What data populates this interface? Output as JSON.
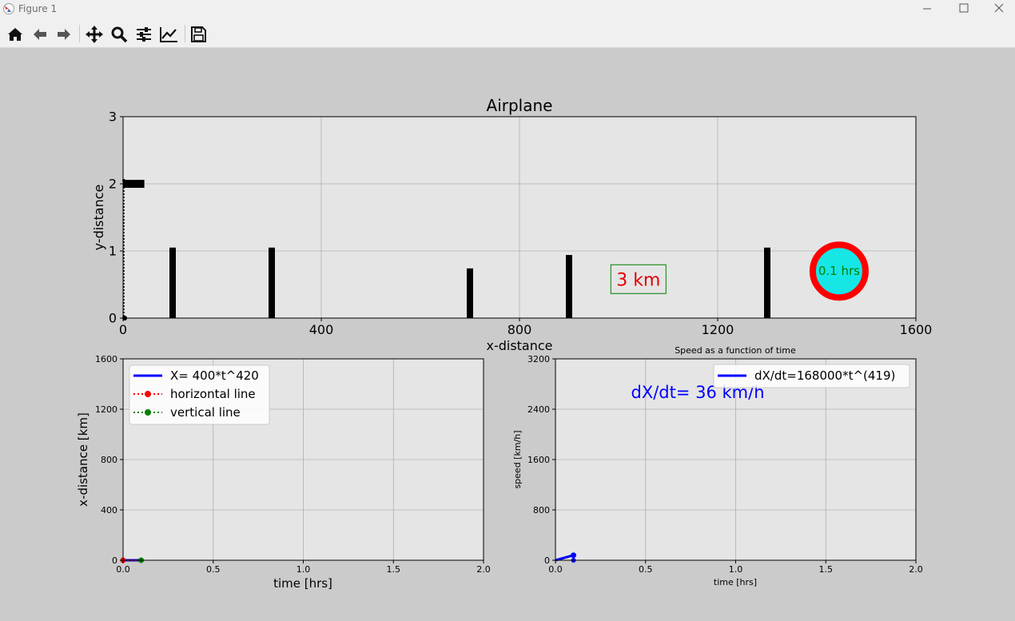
{
  "window": {
    "title": "Figure 1"
  },
  "toolbar": {
    "buttons": [
      "home-icon",
      "back-arrow-icon",
      "forward-arrow-icon",
      "pan-move-icon",
      "zoom-magnifier-icon",
      "configure-subplots-icon",
      "edit-axis-icon",
      "save-disk-icon"
    ]
  },
  "colors": {
    "axes_bg": "#e5e5e5",
    "figure_bg": "#cbcbcb",
    "blue": "#0000ff",
    "red": "#ff0000",
    "green": "#008000",
    "cyan": "#17e6e6"
  },
  "chart_data": [
    {
      "type": "scatter",
      "title": "Airplane",
      "xlabel": "x-distance",
      "ylabel": "y-distance",
      "xlim": [
        0,
        1600
      ],
      "ylim": [
        0,
        3
      ],
      "xticks": [
        "0",
        "400",
        "800",
        "1200",
        "1600"
      ],
      "yticks": [
        "0",
        "1",
        "2",
        "3"
      ],
      "grid": true,
      "airplane": {
        "x": [
          0,
          30
        ],
        "y": 2
      },
      "vertical_marker_x": 0,
      "obstacles": [
        {
          "x": 100,
          "height": 1.05
        },
        {
          "x": 300,
          "height": 1.05
        },
        {
          "x": 700,
          "height": 0.74
        },
        {
          "x": 900,
          "height": 0.94
        },
        {
          "x": 1300,
          "height": 1.05
        }
      ],
      "distance_box": {
        "text": "3 km",
        "x": 1040,
        "y": 0.58
      },
      "time_circle": {
        "text": "0.1 hrs",
        "x": 1445,
        "y": 0.7
      }
    },
    {
      "type": "line",
      "xlabel": "time [hrs]",
      "ylabel": "x-distance [km]",
      "xlim": [
        0,
        2.0
      ],
      "ylim": [
        0,
        1600
      ],
      "xticks": [
        "0.0",
        "0.5",
        "1.0",
        "1.5",
        "2.0"
      ],
      "yticks": [
        "0",
        "400",
        "800",
        "1200",
        "1600"
      ],
      "grid": true,
      "legend": {
        "placement": "top-left",
        "entries": [
          "X= 400*t^420",
          "horizontal line",
          "vertical line"
        ]
      },
      "series": [
        {
          "name": "X= 400*t^420",
          "x": [
            0.0,
            0.1
          ],
          "y": [
            0,
            0
          ],
          "color": "#0000ff"
        },
        {
          "name": "horizontal line",
          "x": [
            0.0,
            0.1
          ],
          "y": [
            0,
            0
          ],
          "color": "#ff0000"
        },
        {
          "name": "vertical line",
          "x": [
            0.1,
            0.1
          ],
          "y": [
            0,
            0
          ],
          "color": "#008000"
        }
      ],
      "baseline_x": [
        0,
        1.5
      ]
    },
    {
      "type": "line",
      "title": "Speed as a function of time",
      "xlabel": "time [hrs]",
      "ylabel": "speed [km/h]",
      "xlim": [
        0,
        2.0
      ],
      "ylim": [
        0,
        3200
      ],
      "xticks": [
        "0.0",
        "0.5",
        "1.0",
        "1.5",
        "2.0"
      ],
      "yticks": [
        "0",
        "800",
        "1600",
        "2400",
        "3200"
      ],
      "grid": true,
      "legend": {
        "placement": "top-right",
        "entries": [
          "dX/dt=168000*t^(419)"
        ]
      },
      "annotation": "dX/dt= 36 km/h",
      "series": [
        {
          "name": "dX/dt=168000*t^(419)",
          "x": [
            0.0,
            0.1
          ],
          "y": [
            0,
            80
          ],
          "color": "#0000ff"
        }
      ],
      "baseline_x": [
        0,
        1.5
      ]
    }
  ]
}
